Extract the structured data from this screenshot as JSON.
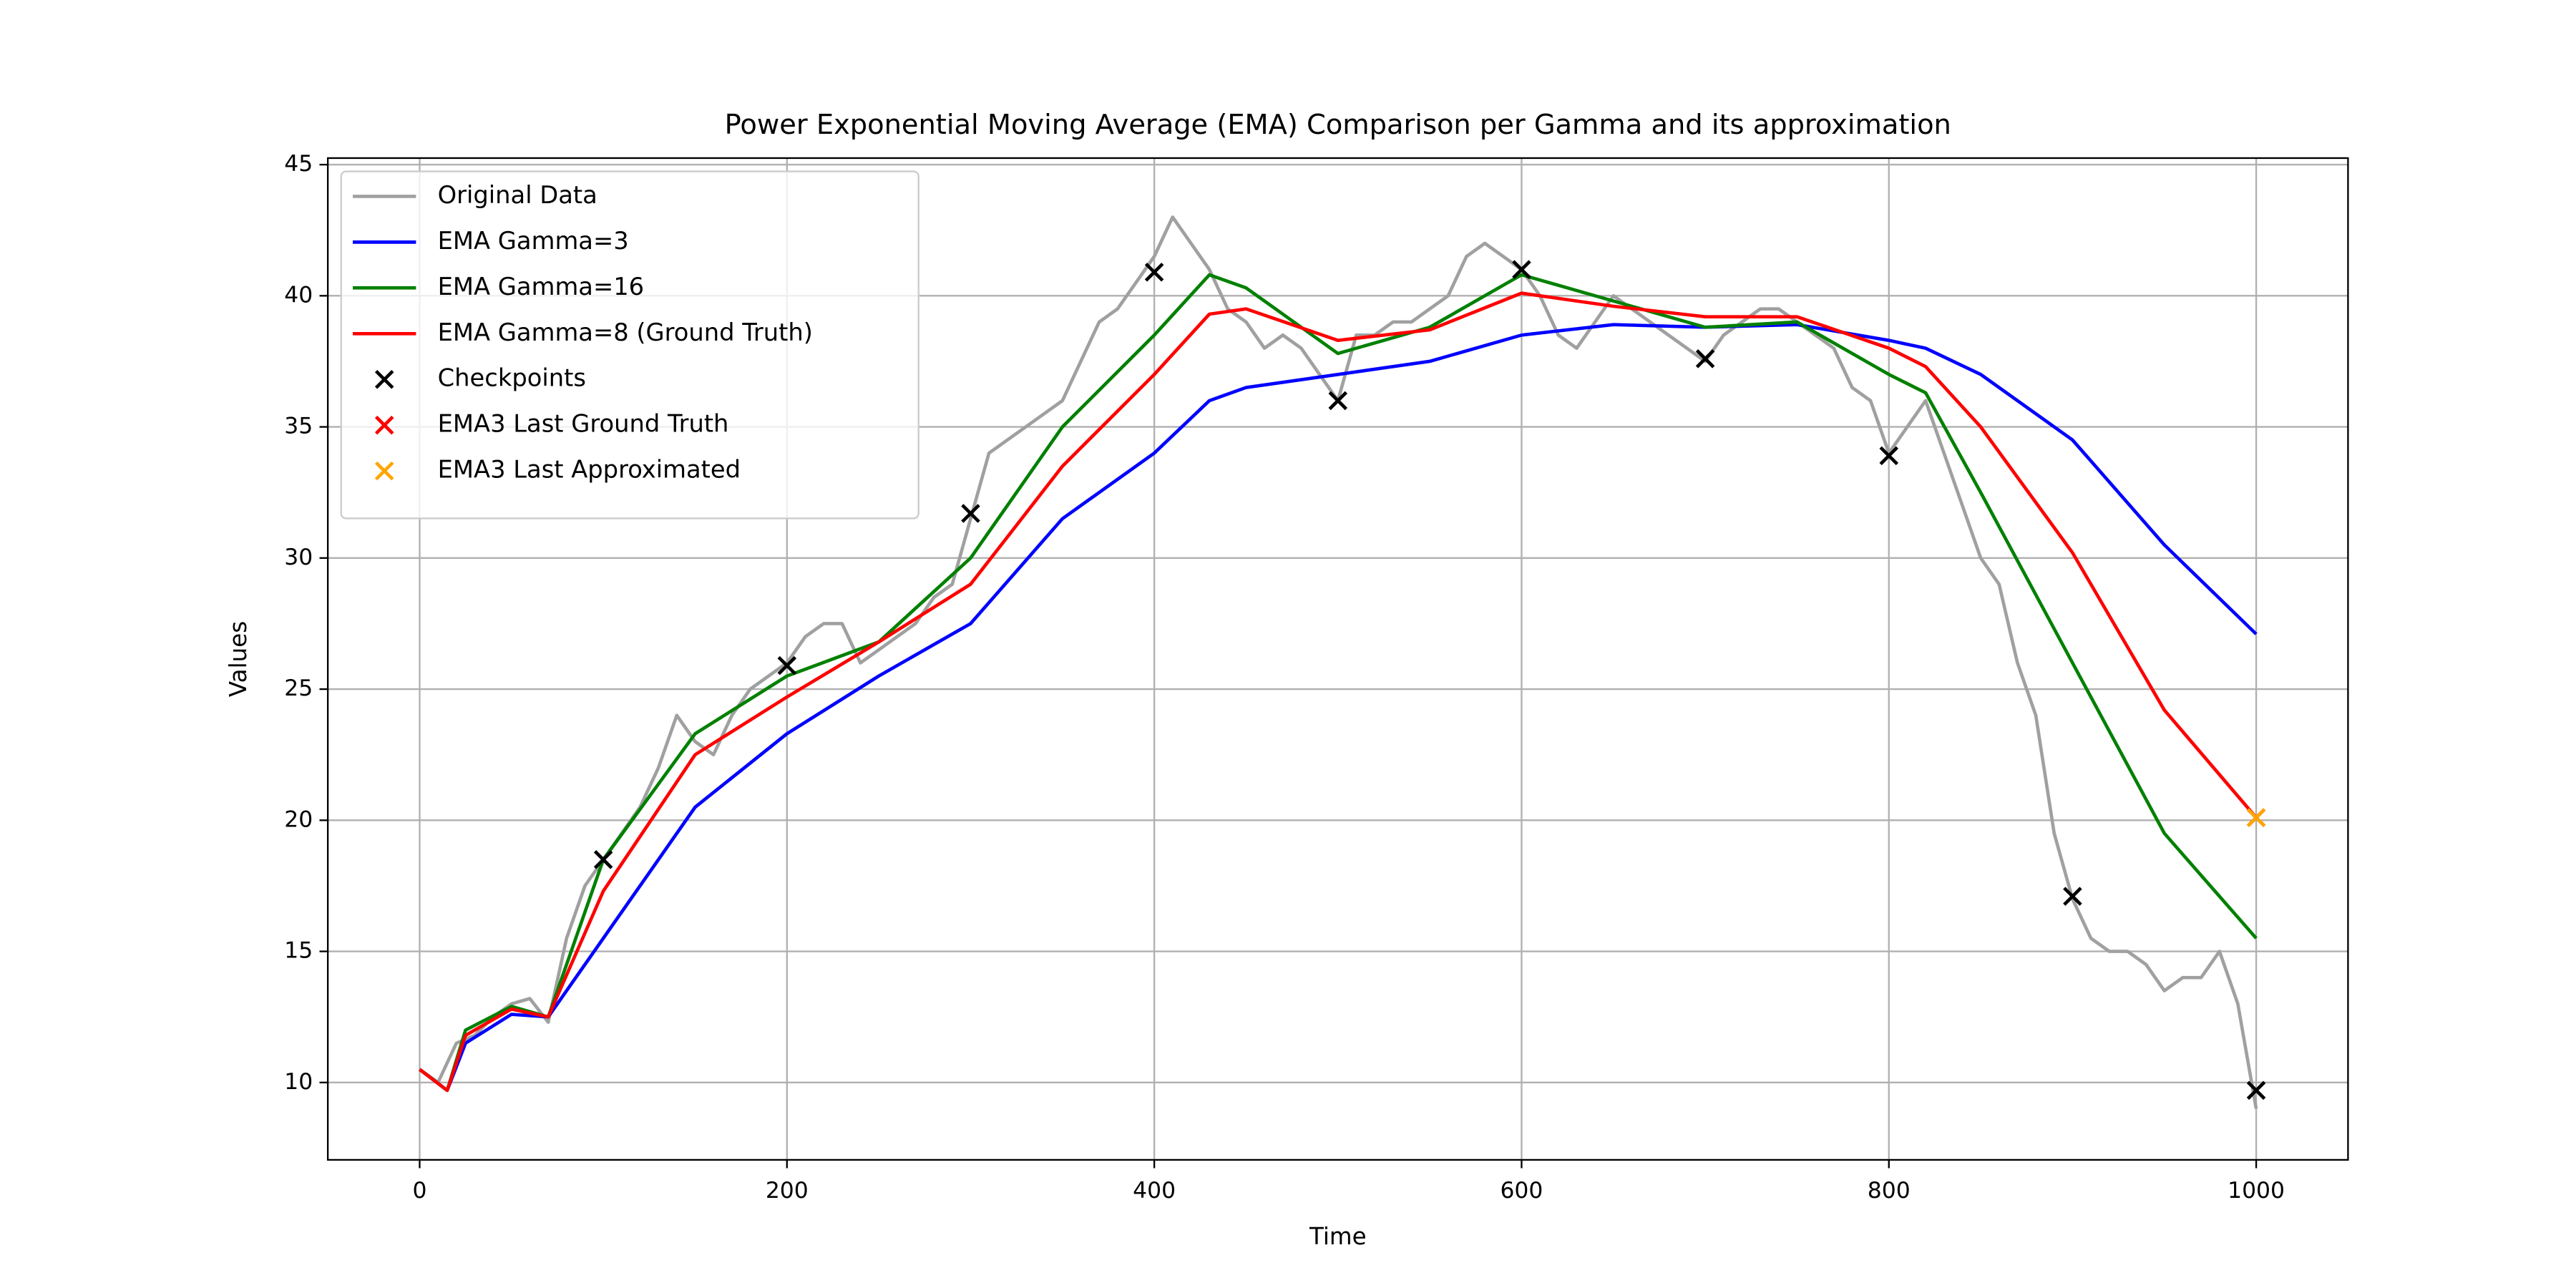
{
  "chart_data": {
    "type": "line",
    "title": "Power Exponential Moving Average (EMA) Comparison per Gamma and its approximation",
    "x_label": "Time",
    "y_label": "Values",
    "xlim": [
      -50,
      1050
    ],
    "ylim": [
      7.05,
      45.25
    ],
    "xticks": [
      0,
      200,
      400,
      600,
      800,
      1000
    ],
    "yticks": [
      10,
      15,
      20,
      25,
      30,
      35,
      40,
      45
    ],
    "grid": true,
    "legend": "upper left",
    "series": [
      {
        "name": "Original Data",
        "kind": "line",
        "color": "#a0a0a0",
        "x": [
          0,
          10,
          20,
          30,
          40,
          50,
          60,
          70,
          80,
          90,
          100,
          110,
          120,
          130,
          140,
          150,
          160,
          170,
          180,
          190,
          200,
          210,
          220,
          230,
          240,
          250,
          260,
          270,
          280,
          290,
          300,
          310,
          320,
          330,
          340,
          350,
          360,
          370,
          380,
          390,
          400,
          410,
          420,
          430,
          440,
          450,
          460,
          470,
          480,
          490,
          500,
          510,
          520,
          530,
          540,
          550,
          560,
          570,
          580,
          590,
          600,
          610,
          620,
          630,
          640,
          650,
          660,
          670,
          680,
          690,
          700,
          710,
          720,
          730,
          740,
          750,
          760,
          770,
          780,
          790,
          800,
          810,
          820,
          830,
          840,
          850,
          860,
          870,
          880,
          890,
          900,
          910,
          920,
          930,
          940,
          950,
          960,
          970,
          980,
          990,
          1000
        ],
        "values": [
          10.5,
          10.0,
          11.5,
          11.8,
          12.5,
          13.0,
          13.2,
          12.3,
          15.5,
          17.5,
          18.5,
          19.5,
          20.5,
          22,
          24,
          23,
          22.5,
          24,
          25,
          25.5,
          26,
          27,
          27.5,
          27.5,
          26,
          26.5,
          27,
          27.5,
          28.5,
          29,
          31.5,
          34,
          34.5,
          35,
          35.5,
          36,
          37.5,
          39,
          39.5,
          40.5,
          41.5,
          43,
          42,
          41,
          39.5,
          39,
          38,
          38.5,
          38,
          37,
          36,
          38.5,
          38.5,
          39,
          39,
          39.5,
          40,
          41.5,
          42,
          41.5,
          41,
          40,
          38.5,
          38,
          39,
          40,
          39.5,
          39,
          38.5,
          38,
          37.5,
          38.5,
          39,
          39.5,
          39.5,
          39,
          38.5,
          38,
          36.5,
          36,
          34,
          35,
          36,
          34,
          32,
          30,
          29,
          26,
          24,
          19.5,
          17,
          15.5,
          15,
          15,
          14.5,
          13.5,
          14,
          14,
          15,
          13,
          9
        ]
      },
      {
        "name": "EMA Gamma=3",
        "kind": "line",
        "color": "#0000ff",
        "x": [
          0,
          15,
          25,
          50,
          70,
          100,
          150,
          200,
          250,
          300,
          350,
          400,
          430,
          450,
          500,
          550,
          600,
          650,
          700,
          750,
          800,
          820,
          850,
          900,
          950,
          1000
        ],
        "values": [
          10.5,
          9.7,
          11.5,
          12.6,
          12.5,
          15.5,
          20.5,
          23.3,
          25.5,
          27.5,
          31.5,
          34,
          36,
          36.5,
          37,
          37.5,
          38.5,
          38.9,
          38.8,
          38.9,
          38.3,
          38,
          37,
          34.5,
          30.5,
          27.1
        ]
      },
      {
        "name": "EMA Gamma=16",
        "kind": "line",
        "color": "#008000",
        "x": [
          0,
          15,
          25,
          50,
          70,
          100,
          150,
          200,
          250,
          300,
          350,
          400,
          430,
          450,
          500,
          550,
          600,
          650,
          700,
          750,
          800,
          820,
          850,
          900,
          950,
          1000
        ],
        "values": [
          10.5,
          9.7,
          12,
          12.9,
          12.5,
          18.5,
          23.3,
          25.5,
          26.8,
          30,
          35,
          38.5,
          40.8,
          40.3,
          37.8,
          38.8,
          40.8,
          39.8,
          38.8,
          39,
          37,
          36.3,
          32.5,
          26,
          19.5,
          15.5
        ]
      },
      {
        "name": "EMA Gamma=8 (Ground Truth)",
        "kind": "line",
        "color": "#ff0000",
        "x": [
          0,
          15,
          25,
          50,
          70,
          100,
          150,
          200,
          250,
          300,
          350,
          400,
          430,
          450,
          500,
          550,
          600,
          650,
          700,
          750,
          800,
          820,
          850,
          900,
          950,
          1000
        ],
        "values": [
          10.5,
          9.7,
          11.8,
          12.8,
          12.5,
          17.3,
          22.5,
          24.7,
          26.8,
          29,
          33.5,
          37,
          39.3,
          39.5,
          38.3,
          38.7,
          40.1,
          39.6,
          39.2,
          39.2,
          38,
          37.3,
          35,
          30.2,
          24.2,
          20.1
        ]
      },
      {
        "name": "Checkpoints",
        "kind": "scatter",
        "color": "#000000",
        "x": [
          100,
          200,
          300,
          400,
          500,
          600,
          700,
          800,
          900,
          1000
        ],
        "values": [
          18.5,
          25.9,
          31.7,
          40.9,
          36,
          41,
          37.6,
          33.9,
          17.1,
          9.7
        ]
      },
      {
        "name": "EMA3 Last Ground Truth",
        "kind": "scatter",
        "color": "#ff0000",
        "x": [
          1000
        ],
        "values": [
          20.1
        ]
      },
      {
        "name": "EMA3 Last Approximated",
        "kind": "scatter",
        "color": "#ffa500",
        "x": [
          1000
        ],
        "values": [
          20.1
        ]
      }
    ]
  }
}
